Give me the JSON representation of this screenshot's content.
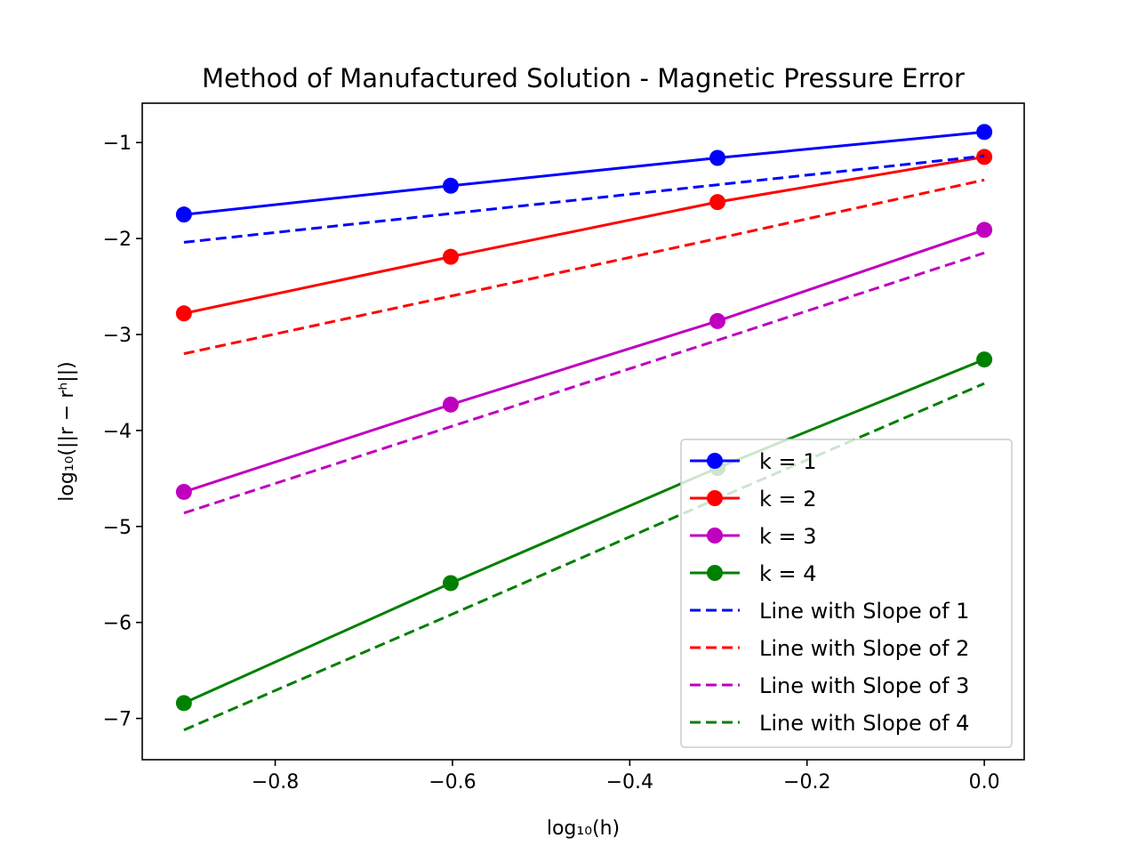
{
  "chart_data": {
    "type": "line",
    "title": "Method of Manufactured Solution - Magnetic Pressure Error",
    "xlabel": "log₁₀(h)",
    "ylabel": "log₁₀(||r − rʰ||)",
    "xlim": [
      -0.95,
      0.045
    ],
    "ylim": [
      -7.43,
      -0.59
    ],
    "xticks": [
      -0.8,
      -0.6,
      -0.4,
      -0.2,
      0.0
    ],
    "xtick_labels": [
      "−0.8",
      "−0.6",
      "−0.4",
      "−0.2",
      "0.0"
    ],
    "yticks": [
      -7,
      -6,
      -5,
      -4,
      -3,
      -2,
      -1
    ],
    "ytick_labels": [
      "−7",
      "−6",
      "−5",
      "−4",
      "−3",
      "−2",
      "−1"
    ],
    "x": [
      -0.903,
      -0.602,
      -0.301,
      0.0
    ],
    "series": [
      {
        "name": "k = 1",
        "color": "#0000ff",
        "style": "solid",
        "marker": "circle",
        "values": [
          -1.75,
          -1.45,
          -1.16,
          -0.89
        ]
      },
      {
        "name": "k = 2",
        "color": "#ff0000",
        "style": "solid",
        "marker": "circle",
        "values": [
          -2.78,
          -2.19,
          -1.62,
          -1.15
        ]
      },
      {
        "name": "k = 3",
        "color": "#bf00bf",
        "style": "solid",
        "marker": "circle",
        "values": [
          -4.64,
          -3.73,
          -2.86,
          -1.91
        ]
      },
      {
        "name": "k = 4",
        "color": "#008000",
        "style": "solid",
        "marker": "circle",
        "values": [
          -6.84,
          -5.59,
          -4.39,
          -3.26
        ]
      },
      {
        "name": "Line with Slope of 1",
        "color": "#0000ff",
        "style": "dashed",
        "marker": "none",
        "values": [
          -2.04,
          -1.74,
          -1.44,
          -1.14
        ]
      },
      {
        "name": "Line with Slope of 2",
        "color": "#ff0000",
        "style": "dashed",
        "marker": "none",
        "values": [
          -3.2,
          -2.6,
          -2.0,
          -1.39
        ]
      },
      {
        "name": "Line with Slope of 3",
        "color": "#bf00bf",
        "style": "dashed",
        "marker": "none",
        "values": [
          -4.86,
          -3.96,
          -3.06,
          -2.15
        ]
      },
      {
        "name": "Line with Slope of 4",
        "color": "#008000",
        "style": "dashed",
        "marker": "none",
        "values": [
          -7.12,
          -5.92,
          -4.71,
          -3.51
        ]
      }
    ],
    "legend": {
      "position": "lower-right"
    },
    "grid": false
  }
}
